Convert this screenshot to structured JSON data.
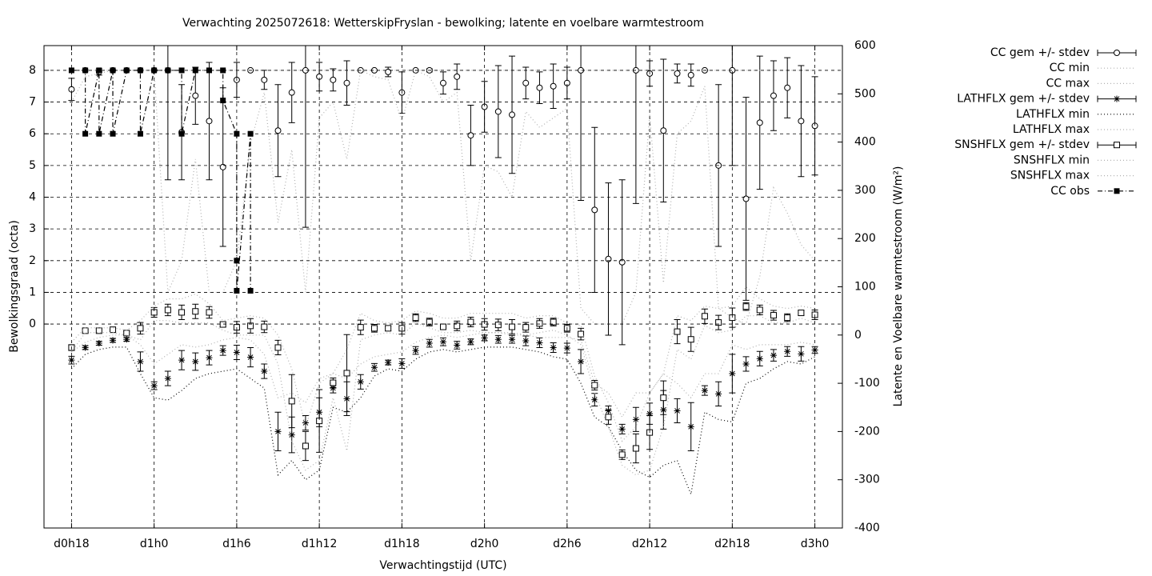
{
  "chart_data": {
    "type": "line",
    "title": "Verwachting 2025072618: WetterskipFryslan - bewolking; latente en voelbare warmtestroom",
    "xlabel": "Verwachtingstijd (UTC)",
    "ylabel": "Bewolkingsgraad (octa)",
    "y2label": "Latente en Voelbare warmtestroom (W/m²)",
    "grid": true,
    "legend": "outside-right",
    "xlim": [
      16,
      74
    ],
    "xticks": [
      {
        "value": 18,
        "label": "d0h18"
      },
      {
        "value": 24,
        "label": "d1h0"
      },
      {
        "value": 30,
        "label": "d1h6"
      },
      {
        "value": 36,
        "label": "d1h12"
      },
      {
        "value": 42,
        "label": "d1h18"
      },
      {
        "value": 48,
        "label": "d2h0"
      },
      {
        "value": 54,
        "label": "d2h6"
      },
      {
        "value": 60,
        "label": "d2h12"
      },
      {
        "value": 66,
        "label": "d2h18"
      },
      {
        "value": 72,
        "label": "d3h0"
      }
    ],
    "ylim": [
      -6.43,
      8.78
    ],
    "yticks": [
      0,
      1,
      2,
      3,
      4,
      5,
      6,
      7,
      8
    ],
    "y2lim": [
      -400,
      600
    ],
    "y2ticks": [
      -400,
      -300,
      -200,
      -100,
      0,
      100,
      200,
      300,
      400,
      500,
      600
    ],
    "x": [
      18,
      19,
      20,
      21,
      22,
      23,
      24,
      25,
      26,
      27,
      28,
      29,
      30,
      31,
      32,
      33,
      34,
      35,
      36,
      37,
      38,
      39,
      40,
      41,
      42,
      43,
      44,
      45,
      46,
      47,
      48,
      49,
      50,
      51,
      52,
      53,
      54,
      55,
      56,
      57,
      58,
      59,
      60,
      61,
      62,
      63,
      64,
      65,
      66,
      67,
      68,
      69,
      70,
      71,
      72
    ],
    "series": [
      {
        "name": "CC gem +/- stdev",
        "color": "#000000",
        "axis": "y",
        "marker": "circle",
        "line": "none",
        "values": [
          7.4,
          8,
          7.95,
          8,
          8,
          8,
          8,
          8,
          6.05,
          7.2,
          6.4,
          4.95,
          7.7,
          8,
          7.7,
          6.1,
          7.3,
          8,
          7.8,
          7.7,
          7.6,
          8,
          8,
          7.95,
          7.3,
          8,
          8,
          7.6,
          7.8,
          5.95,
          6.85,
          6.7,
          6.6,
          7.6,
          7.45,
          7.5,
          7.6,
          8,
          3.6,
          2.05,
          1.95,
          8,
          7.9,
          6.1,
          7.9,
          7.85,
          8,
          5,
          8,
          3.95,
          6.35,
          7.2,
          7.45,
          6.4,
          6.25
        ],
        "errors": [
          0.35,
          0,
          0.1,
          0,
          0,
          0,
          0,
          3.45,
          1.5,
          0.9,
          1.85,
          2.5,
          0.55,
          0,
          0.3,
          1.45,
          0.95,
          4.95,
          0.45,
          0.35,
          0.7,
          0,
          0,
          0.15,
          0.65,
          0,
          0.05,
          0.35,
          0.4,
          0.95,
          0.8,
          1.45,
          1.85,
          0.5,
          0.5,
          0.7,
          0.5,
          4.1,
          2.6,
          2.4,
          2.6,
          4.2,
          0.4,
          2.25,
          0.3,
          0.35,
          0,
          2.55,
          3,
          3.2,
          2.1,
          1.1,
          0.95,
          1.75,
          1.55
        ]
      },
      {
        "name": "CC min",
        "color": "#b0b0b0",
        "axis": "y",
        "marker": null,
        "line": "dotted",
        "values": [
          7,
          7.8,
          7.9,
          8,
          8,
          8,
          8,
          1,
          2,
          5.2,
          1,
          1,
          2,
          5.7,
          7.3,
          3.2,
          5.5,
          1,
          6.5,
          7,
          5.2,
          8,
          7.8,
          7.7,
          6.4,
          8,
          7.8,
          7,
          7.3,
          2,
          5,
          4.8,
          4,
          6.7,
          6.2,
          6.5,
          6.8,
          0.5,
          0,
          0,
          0,
          1,
          6.6,
          1.3,
          6,
          6.4,
          7.5,
          0.5,
          0.2,
          0,
          1.5,
          4.3,
          3.5,
          2.5,
          2
        ]
      },
      {
        "name": "CC max",
        "color": "#b0b0b0",
        "axis": "y",
        "marker": null,
        "line": "dotted",
        "values": [
          8,
          8,
          8,
          8,
          8,
          8,
          8,
          8,
          8,
          8,
          8,
          8,
          8,
          8,
          8,
          8,
          8,
          8,
          8,
          8,
          8,
          8,
          8,
          8,
          8,
          8,
          8,
          8,
          8,
          8,
          8,
          8,
          8,
          8,
          8,
          8,
          8,
          8,
          8,
          8,
          8,
          8,
          8,
          8,
          8,
          8,
          8,
          8,
          8,
          8,
          8,
          8,
          8,
          8,
          8
        ]
      },
      {
        "name": "LATHFLX gem +/- stdev",
        "color": "#000000",
        "axis": "y2",
        "marker": "star",
        "line": "none",
        "values": [
          -52,
          -26,
          -17,
          -11,
          -9,
          -55,
          -105,
          -90,
          -52,
          -55,
          -47,
          -32,
          -36,
          -46,
          -75,
          -200,
          -207,
          -182,
          -160,
          -110,
          -132,
          -97,
          -67,
          -57,
          -59,
          -32,
          -17,
          -14,
          -21,
          -14,
          -6,
          -9,
          -9,
          -12,
          -16,
          -26,
          -27,
          -55,
          -134,
          -157,
          -195,
          -175,
          -163,
          -155,
          -157,
          -190,
          -115,
          -122,
          -80,
          -60,
          -49,
          -42,
          -34,
          -39,
          -31
        ],
        "errors": [
          8,
          4,
          4,
          4,
          4,
          20,
          8,
          15,
          20,
          18,
          15,
          10,
          15,
          20,
          15,
          40,
          37,
          15,
          30,
          10,
          35,
          15,
          8,
          5,
          10,
          8,
          8,
          8,
          8,
          6,
          6,
          8,
          8,
          10,
          10,
          10,
          10,
          25,
          13,
          10,
          10,
          25,
          22,
          40,
          25,
          50,
          10,
          25,
          40,
          15,
          15,
          12,
          10,
          15,
          7
        ]
      },
      {
        "name": "LATHFLX min",
        "color": "#000000",
        "axis": "y2",
        "marker": null,
        "line": "dotted",
        "values": [
          -70,
          -40,
          -30,
          -25,
          -25,
          -80,
          -130,
          -135,
          -115,
          -90,
          -80,
          -75,
          -70,
          -90,
          -110,
          -290,
          -260,
          -300,
          -280,
          -150,
          -160,
          -130,
          -85,
          -70,
          -75,
          -50,
          -35,
          -30,
          -35,
          -30,
          -25,
          -25,
          -25,
          -30,
          -35,
          -45,
          -50,
          -100,
          -170,
          -190,
          -240,
          -280,
          -295,
          -270,
          -260,
          -330,
          -160,
          -175,
          -180,
          -100,
          -90,
          -70,
          -55,
          -60,
          -45
        ]
      },
      {
        "name": "LATHFLX max",
        "color": "#b0b0b0",
        "axis": "y2",
        "marker": null,
        "line": "dotted",
        "values": [
          -35,
          -15,
          -5,
          0,
          0,
          -20,
          -60,
          -40,
          -20,
          -25,
          -20,
          -10,
          -5,
          -10,
          -40,
          -130,
          -120,
          -140,
          -90,
          -80,
          -90,
          -60,
          -45,
          -40,
          -35,
          -15,
          -5,
          0,
          -5,
          0,
          5,
          5,
          5,
          0,
          -5,
          -5,
          -5,
          -10,
          -100,
          -120,
          -170,
          -120,
          -120,
          -80,
          -100,
          -130,
          -80,
          -80,
          -20,
          -30,
          -20,
          -20,
          -20,
          -15,
          -20
        ]
      },
      {
        "name": "SNSHFLX gem +/- stdev",
        "color": "#000000",
        "axis": "y2",
        "marker": "square",
        "line": "none",
        "values": [
          -26,
          9,
          9,
          11,
          4,
          14,
          47,
          52,
          47,
          49,
          47,
          22,
          16,
          19,
          17,
          -26,
          -137,
          -230,
          -178,
          -99,
          -79,
          16,
          14,
          14,
          14,
          36,
          27,
          17,
          19,
          27,
          22,
          21,
          17,
          16,
          24,
          27,
          14,
          2,
          -104,
          -170,
          -248,
          -235,
          -202,
          -130,
          7,
          -9,
          39,
          26,
          36,
          59,
          52,
          41,
          36,
          46,
          42
        ],
        "errors": [
          6,
          4,
          4,
          4,
          4,
          12,
          10,
          12,
          15,
          15,
          12,
          5,
          12,
          15,
          12,
          15,
          55,
          30,
          65,
          10,
          80,
          15,
          8,
          5,
          12,
          8,
          8,
          5,
          10,
          10,
          12,
          12,
          15,
          10,
          10,
          8,
          8,
          12,
          10,
          15,
          10,
          30,
          35,
          35,
          25,
          25,
          15,
          15,
          20,
          8,
          10,
          10,
          8,
          5,
          10
        ]
      },
      {
        "name": "SNSHFLX min",
        "color": "#b0b0b0",
        "axis": "y2",
        "marker": null,
        "line": "dotted",
        "values": [
          -35,
          5,
          5,
          5,
          0,
          -10,
          30,
          30,
          25,
          25,
          25,
          10,
          0,
          0,
          0,
          -60,
          -220,
          -280,
          -260,
          -130,
          -240,
          -10,
          0,
          5,
          0,
          25,
          15,
          5,
          5,
          10,
          5,
          5,
          0,
          0,
          5,
          10,
          0,
          -20,
          -120,
          -190,
          -270,
          -290,
          -280,
          -190,
          -30,
          -50,
          20,
          5,
          10,
          40,
          40,
          25,
          25,
          35,
          25
        ]
      },
      {
        "name": "SNSHFLX max",
        "color": "#b0b0b0",
        "axis": "y2",
        "marker": null,
        "line": "dotted",
        "values": [
          -15,
          15,
          15,
          15,
          10,
          30,
          60,
          75,
          75,
          85,
          65,
          30,
          35,
          40,
          35,
          0,
          -70,
          -190,
          -100,
          -80,
          -30,
          45,
          30,
          25,
          30,
          50,
          45,
          35,
          35,
          45,
          45,
          45,
          45,
          35,
          40,
          40,
          25,
          20,
          -85,
          -140,
          -220,
          -190,
          -120,
          -80,
          40,
          30,
          60,
          55,
          60,
          100,
          75,
          60,
          55,
          60,
          55
        ]
      },
      {
        "name": "CC obs",
        "color": "#000000",
        "axis": "y",
        "marker": "filled-square",
        "line": "dash-dot",
        "x": [
          18,
          19,
          19,
          20,
          20,
          21,
          21,
          22,
          23,
          23,
          24,
          25,
          26,
          26,
          27,
          28,
          29,
          29,
          30,
          30,
          30,
          31,
          31
        ],
        "values": [
          8,
          8,
          6,
          8,
          6,
          8,
          6,
          8,
          8,
          6,
          8,
          8,
          8,
          6,
          8,
          8,
          8,
          7.05,
          6,
          2,
          1.05,
          6,
          1.05
        ]
      }
    ]
  }
}
